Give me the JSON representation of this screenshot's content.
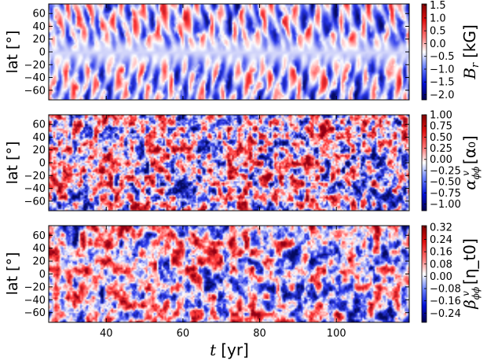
{
  "chart_data": {
    "type": "heatmap",
    "xlabel_var": "t",
    "xlabel_unit": "[yr]",
    "xlim": [
      25,
      119
    ],
    "xticks": [
      40,
      60,
      80,
      100
    ],
    "ylim": [
      -75,
      75
    ],
    "colormap": "seismic (blue–white–red)",
    "colors": {
      "negative": "#0a1e9c",
      "zero": "#ffffff",
      "positive": "#a5001a"
    },
    "panels": [
      {
        "ylabel": "lat [°]",
        "yticks": [
          60,
          40,
          20,
          0,
          -20,
          -40,
          -60
        ],
        "colorbar_label_sym": "B",
        "colorbar_label_sub": "r",
        "colorbar_label_unit": "[kG]",
        "colorbar_ticks": [
          "1.5",
          "1.0",
          "0.5",
          "0.0",
          "−0.5",
          "−1.0",
          "−1.5",
          "−2.0"
        ],
        "clim": [
          -2.2,
          1.55
        ],
        "pattern": "banded"
      },
      {
        "ylabel": "lat [°]",
        "yticks": [
          60,
          40,
          20,
          0,
          -20,
          -40,
          -60
        ],
        "colorbar_label_sym": "α",
        "colorbar_label_sub": "ϕϕ",
        "colorbar_label_sup": "v",
        "colorbar_label_unit": "[α₀]",
        "colorbar_ticks": [
          "1.00",
          "0.75",
          "0.50",
          "0.25",
          "0.00",
          "−0.25",
          "−0.50",
          "−0.75",
          "−1.00"
        ],
        "clim": [
          -1.15,
          1.0
        ],
        "pattern": "noisy"
      },
      {
        "ylabel": "lat [°]",
        "yticks": [
          60,
          40,
          20,
          0,
          -20,
          -40,
          -60
        ],
        "colorbar_label_sym": "β",
        "colorbar_label_sub": "ϕϕ",
        "colorbar_label_sup": "v",
        "colorbar_label_unit": "[η_t0]",
        "colorbar_ticks": [
          "0.32",
          "0.24",
          "0.16",
          "0.08",
          "0.00",
          "−0.08",
          "−0.16",
          "−0.24"
        ],
        "clim": [
          -0.3,
          0.33
        ],
        "pattern": "blotchy"
      }
    ],
    "grid": false,
    "legend": "none"
  }
}
